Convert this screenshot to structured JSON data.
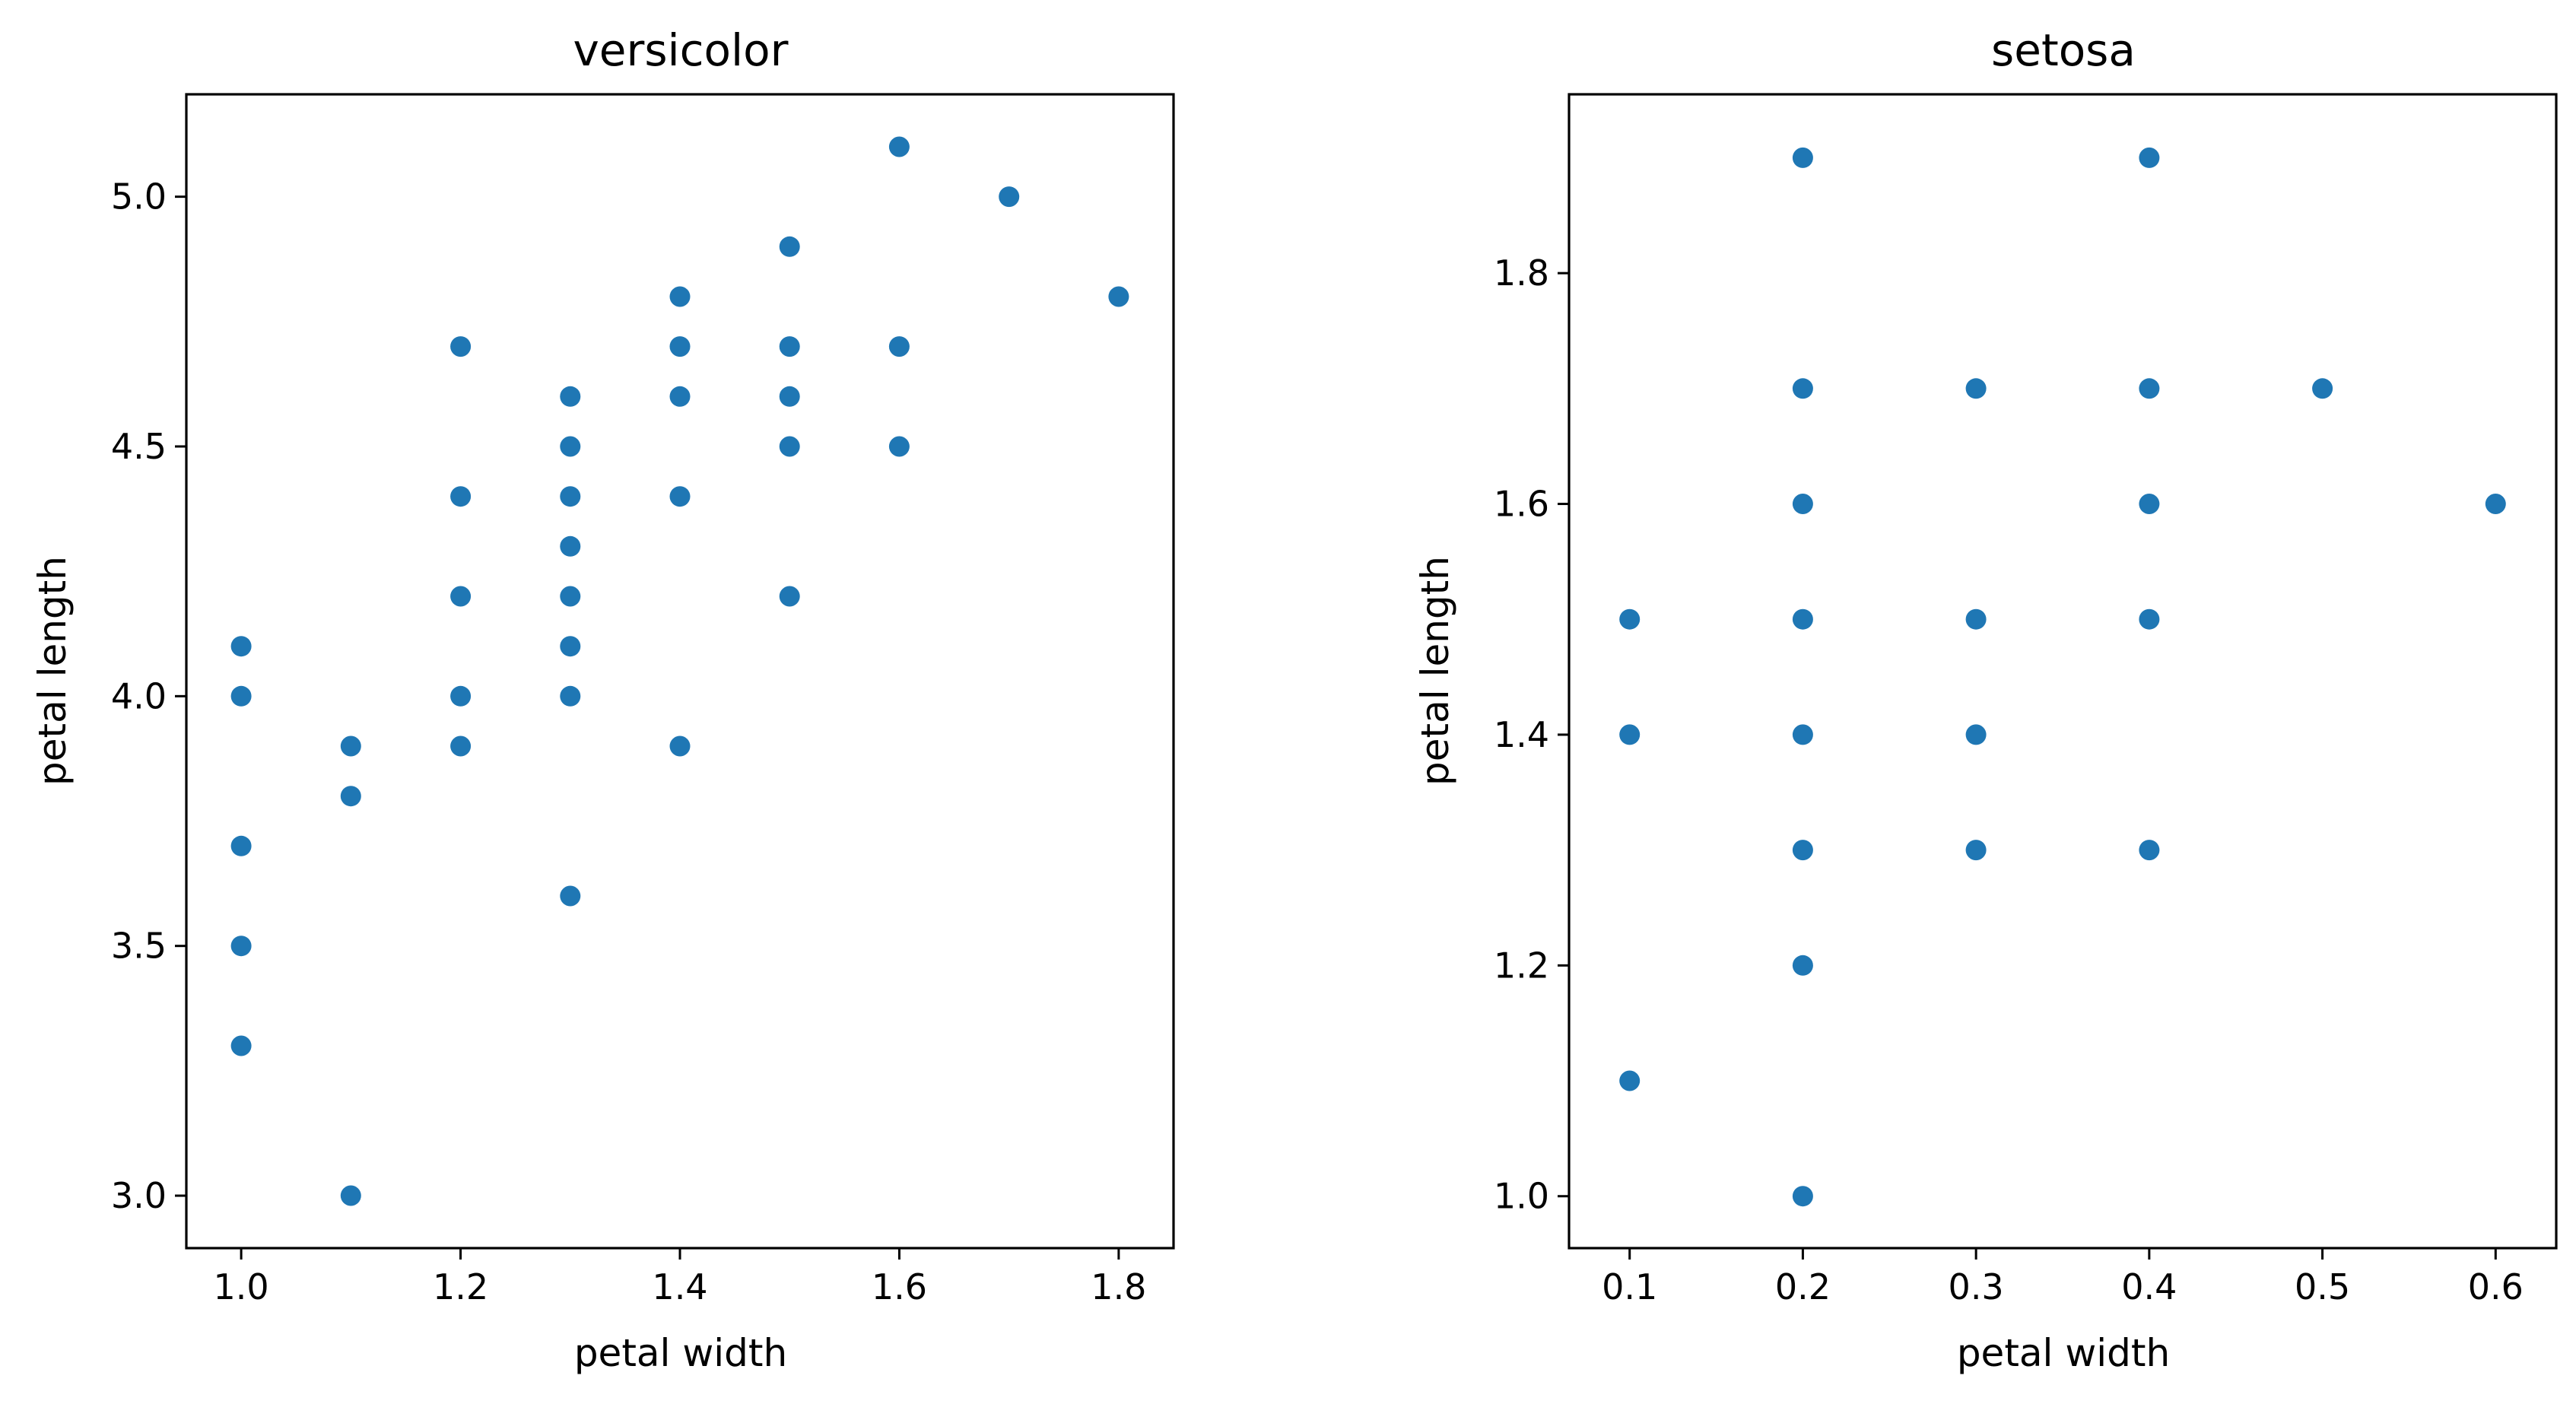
{
  "chart_data": [
    {
      "type": "scatter",
      "title": "versicolor",
      "xlabel": "petal width",
      "ylabel": "petal length",
      "xlim": [
        0.95,
        1.85
      ],
      "ylim": [
        2.895,
        5.205
      ],
      "xticks": [
        1.0,
        1.2,
        1.4,
        1.6,
        1.8
      ],
      "xtick_labels": [
        "1.0",
        "1.2",
        "1.4",
        "1.6",
        "1.8"
      ],
      "yticks": [
        3.0,
        3.5,
        4.0,
        4.5,
        5.0
      ],
      "ytick_labels": [
        "3.0",
        "3.5",
        "4.0",
        "4.5",
        "5.0"
      ],
      "color": "#1f77b4",
      "points": [
        [
          1.0,
          4.1
        ],
        [
          1.0,
          4.0
        ],
        [
          1.0,
          3.7
        ],
        [
          1.0,
          3.5
        ],
        [
          1.0,
          3.3
        ],
        [
          1.1,
          3.9
        ],
        [
          1.1,
          3.8
        ],
        [
          1.1,
          3.0
        ],
        [
          1.2,
          4.7
        ],
        [
          1.2,
          4.4
        ],
        [
          1.2,
          4.2
        ],
        [
          1.2,
          4.0
        ],
        [
          1.2,
          3.9
        ],
        [
          1.3,
          4.6
        ],
        [
          1.3,
          4.5
        ],
        [
          1.3,
          4.4
        ],
        [
          1.3,
          4.3
        ],
        [
          1.3,
          4.2
        ],
        [
          1.3,
          4.1
        ],
        [
          1.3,
          4.0
        ],
        [
          1.3,
          3.6
        ],
        [
          1.4,
          4.8
        ],
        [
          1.4,
          4.7
        ],
        [
          1.4,
          4.6
        ],
        [
          1.4,
          4.4
        ],
        [
          1.4,
          3.9
        ],
        [
          1.5,
          4.9
        ],
        [
          1.5,
          4.7
        ],
        [
          1.5,
          4.6
        ],
        [
          1.5,
          4.5
        ],
        [
          1.5,
          4.2
        ],
        [
          1.6,
          5.1
        ],
        [
          1.6,
          4.7
        ],
        [
          1.6,
          4.5
        ],
        [
          1.7,
          5.0
        ],
        [
          1.8,
          4.8
        ]
      ]
    },
    {
      "type": "scatter",
      "title": "setosa",
      "xlabel": "petal width",
      "ylabel": "petal length",
      "xlim": [
        0.065,
        0.635
      ],
      "ylim": [
        0.955,
        1.955
      ],
      "xticks": [
        0.1,
        0.2,
        0.3,
        0.4,
        0.5,
        0.6
      ],
      "xtick_labels": [
        "0.1",
        "0.2",
        "0.3",
        "0.4",
        "0.5",
        "0.6"
      ],
      "yticks": [
        1.0,
        1.2,
        1.4,
        1.6,
        1.8
      ],
      "ytick_labels": [
        "1.0",
        "1.2",
        "1.4",
        "1.6",
        "1.8"
      ],
      "color": "#1f77b4",
      "points": [
        [
          0.1,
          1.5
        ],
        [
          0.1,
          1.4
        ],
        [
          0.1,
          1.1
        ],
        [
          0.2,
          1.9
        ],
        [
          0.2,
          1.7
        ],
        [
          0.2,
          1.6
        ],
        [
          0.2,
          1.5
        ],
        [
          0.2,
          1.4
        ],
        [
          0.2,
          1.3
        ],
        [
          0.2,
          1.2
        ],
        [
          0.2,
          1.0
        ],
        [
          0.3,
          1.7
        ],
        [
          0.3,
          1.5
        ],
        [
          0.3,
          1.4
        ],
        [
          0.3,
          1.3
        ],
        [
          0.4,
          1.9
        ],
        [
          0.4,
          1.7
        ],
        [
          0.4,
          1.6
        ],
        [
          0.4,
          1.5
        ],
        [
          0.4,
          1.3
        ],
        [
          0.5,
          1.7
        ],
        [
          0.6,
          1.6
        ]
      ]
    }
  ]
}
